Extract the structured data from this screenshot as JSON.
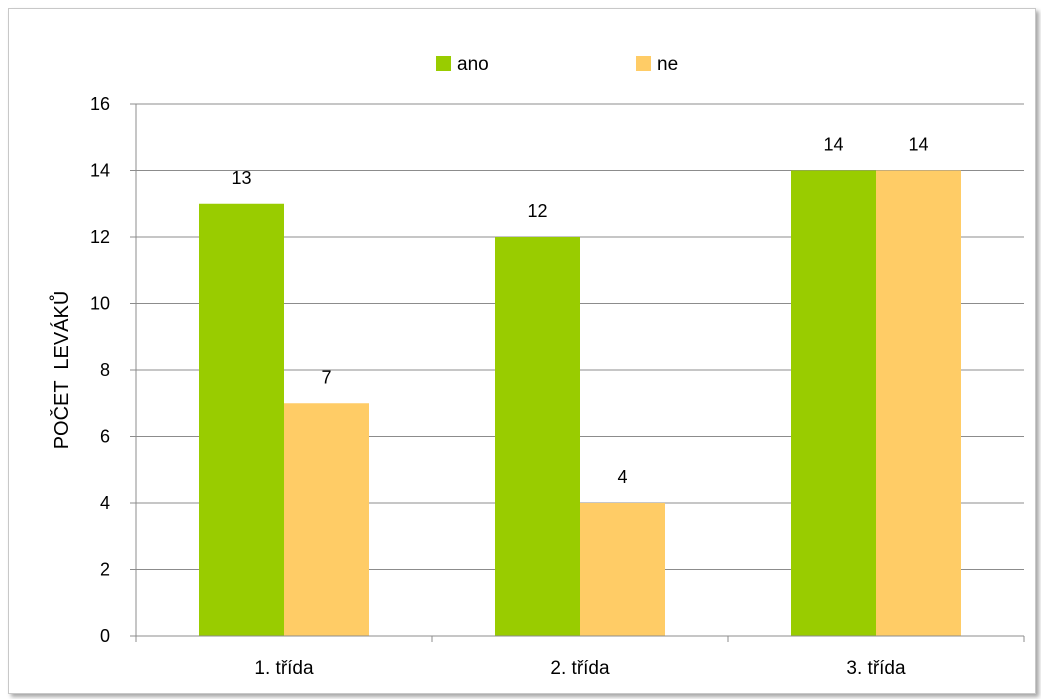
{
  "chart_data": {
    "type": "bar",
    "categories": [
      "1. třída",
      "2. třída",
      "3. třída"
    ],
    "series": [
      {
        "name": "ano",
        "values": [
          13,
          12,
          14
        ],
        "color": "#99cc00"
      },
      {
        "name": "ne",
        "values": [
          7,
          4,
          14
        ],
        "color": "#ffcc66"
      }
    ],
    "title": "",
    "xlabel": "",
    "ylabel": "POČET  LEVÁKŮ",
    "ylim": [
      0,
      16
    ],
    "yticks": [
      0,
      2,
      4,
      6,
      8,
      10,
      12,
      14,
      16
    ],
    "grid": true,
    "legend_position": "top",
    "data_labels": true
  }
}
